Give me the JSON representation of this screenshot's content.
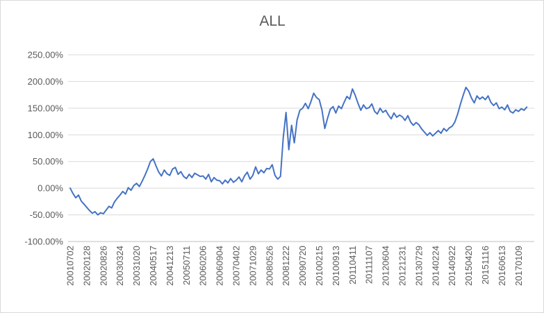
{
  "window": {
    "background_color": "#FFFFFF",
    "border_color": "#D9D9D9"
  },
  "chart_data": {
    "type": "line",
    "title": "ALL",
    "title_color": "#595959",
    "series_color": "#4472C4",
    "gridline_color": "#D9D9D9",
    "axis_line_color": "#BFBFBF",
    "label_color": "#595959",
    "grid": "horizontal",
    "legend": "none",
    "ylim": [
      -100,
      250
    ],
    "y_ticks": [
      {
        "label": "250.00%",
        "value": 250
      },
      {
        "label": "200.00%",
        "value": 200
      },
      {
        "label": "150.00%",
        "value": 150
      },
      {
        "label": "100.00%",
        "value": 100
      },
      {
        "label": "50.00%",
        "value": 50
      },
      {
        "label": "0.00%",
        "value": 0
      },
      {
        "label": "-50.00%",
        "value": -50
      },
      {
        "label": "-100.00%",
        "value": -100
      }
    ],
    "categories": [
      "20010702",
      "20020128",
      "20020826",
      "20030324",
      "20031020",
      "20040517",
      "20041213",
      "20050711",
      "20060206",
      "20060904",
      "20070402",
      "20071029",
      "20080526",
      "20081222",
      "20090720",
      "20100215",
      "20100913",
      "20110411",
      "20111107",
      "20120604",
      "20121231",
      "20130729",
      "20140224",
      "20140922",
      "20150420",
      "20151116",
      "20160613",
      "20170109"
    ],
    "points_per_category": 6,
    "values": [
      0,
      -10,
      -18,
      -13,
      -24,
      -30,
      -36,
      -42,
      -47,
      -44,
      -50,
      -46,
      -48,
      -41,
      -34,
      -37,
      -26,
      -19,
      -13,
      -6,
      -11,
      1,
      -4,
      5,
      9,
      3,
      13,
      24,
      36,
      50,
      55,
      42,
      30,
      23,
      34,
      27,
      24,
      36,
      39,
      26,
      31,
      22,
      18,
      26,
      20,
      28,
      25,
      22,
      23,
      17,
      26,
      12,
      20,
      15,
      14,
      8,
      15,
      10,
      18,
      11,
      15,
      21,
      12,
      23,
      30,
      17,
      24,
      40,
      27,
      34,
      29,
      37,
      36,
      44,
      24,
      17,
      22,
      95,
      142,
      72,
      118,
      85,
      128,
      146,
      150,
      159,
      149,
      162,
      178,
      170,
      166,
      146,
      112,
      131,
      148,
      153,
      141,
      154,
      149,
      161,
      172,
      167,
      186,
      174,
      159,
      146,
      156,
      149,
      151,
      158,
      144,
      139,
      150,
      142,
      146,
      137,
      130,
      141,
      133,
      137,
      134,
      127,
      136,
      124,
      118,
      123,
      119,
      111,
      105,
      99,
      104,
      98,
      103,
      108,
      103,
      112,
      107,
      113,
      116,
      124,
      139,
      157,
      174,
      189,
      182,
      169,
      160,
      173,
      167,
      171,
      166,
      173,
      161,
      155,
      160,
      149,
      152,
      147,
      156,
      144,
      141,
      147,
      144,
      149,
      146,
      152
    ]
  }
}
